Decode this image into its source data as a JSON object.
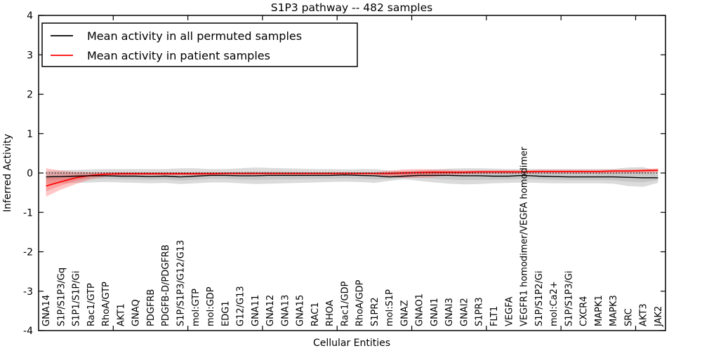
{
  "chart_data": {
    "type": "line",
    "title": "S1P3 pathway -- 482 samples",
    "xlabel": "Cellular Entities",
    "ylabel": "Inferred Activity",
    "ylim": [
      -4,
      4
    ],
    "y_ticks": [
      4,
      3,
      2,
      1,
      0,
      -1,
      -2,
      -3,
      -4
    ],
    "grid": false,
    "zero_line": {
      "value": 0,
      "style": "dotted",
      "color": "#000000"
    },
    "legend": {
      "position": "upper left",
      "entries": [
        {
          "label": "Mean activity in all permuted samples",
          "color": "#000000"
        },
        {
          "label": "Mean activity in patient samples",
          "color": "#ff0000"
        }
      ]
    },
    "categories": [
      "GNA14",
      "S1P/S1P3/Gq",
      "S1P1/S1P/Gi",
      "Rac1/GTP",
      "RhoA/GTP",
      "AKT1",
      "GNAQ",
      "PDGFRB",
      "PDGFB-D/PDGFRB",
      "S1P/S1P3/G12/G13",
      "mol:GTP",
      "mol:GDP",
      "EDG1",
      "G12/G13",
      "GNA11",
      "GNA12",
      "GNA13",
      "GNA15",
      "RAC1",
      "RHOA",
      "Rac1/GDP",
      "RhoA/GDP",
      "S1PR2",
      "mol:S1P",
      "GNAZ",
      "GNAO1",
      "GNAI1",
      "GNAI3",
      "GNAI2",
      "S1PR3",
      "FLT1",
      "VEGFA",
      "VEGFR1 homodimer/VEGFA homodimer",
      "S1P/S1P2/Gi",
      "mol:Ca2+",
      "S1P/S1P3/Gi",
      "CXCR4",
      "MAPK1",
      "MAPK3",
      "SRC",
      "AKT3",
      "JAK2"
    ],
    "series": [
      {
        "name": "Mean activity in all permuted samples",
        "color": "#000000",
        "band_color": "#b0b0b0",
        "values": [
          -0.1,
          -0.09,
          -0.08,
          -0.07,
          -0.07,
          -0.08,
          -0.08,
          -0.09,
          -0.08,
          -0.1,
          -0.08,
          -0.06,
          -0.06,
          -0.07,
          -0.07,
          -0.06,
          -0.06,
          -0.06,
          -0.06,
          -0.06,
          -0.05,
          -0.06,
          -0.07,
          -0.1,
          -0.08,
          -0.06,
          -0.06,
          -0.06,
          -0.07,
          -0.07,
          -0.08,
          -0.08,
          -0.06,
          -0.08,
          -0.09,
          -0.1,
          -0.1,
          -0.1,
          -0.1,
          -0.11,
          -0.12,
          -0.12
        ],
        "band_upper": [
          0.05,
          0.07,
          0.08,
          0.09,
          0.1,
          0.1,
          0.1,
          0.1,
          0.1,
          0.12,
          0.12,
          0.1,
          0.1,
          0.12,
          0.14,
          0.13,
          0.12,
          0.11,
          0.1,
          0.1,
          0.09,
          0.1,
          0.1,
          0.06,
          0.05,
          0.07,
          0.09,
          0.11,
          0.12,
          0.12,
          0.11,
          0.1,
          0.1,
          0.1,
          0.1,
          0.1,
          0.1,
          0.1,
          0.1,
          0.14,
          0.15,
          0.05
        ],
        "band_lower": [
          -0.28,
          -0.26,
          -0.25,
          -0.24,
          -0.23,
          -0.24,
          -0.25,
          -0.26,
          -0.25,
          -0.28,
          -0.26,
          -0.24,
          -0.24,
          -0.26,
          -0.28,
          -0.27,
          -0.26,
          -0.25,
          -0.24,
          -0.23,
          -0.22,
          -0.23,
          -0.25,
          -0.2,
          -0.16,
          -0.2,
          -0.24,
          -0.27,
          -0.29,
          -0.28,
          -0.26,
          -0.25,
          -0.24,
          -0.25,
          -0.26,
          -0.26,
          -0.26,
          -0.26,
          -0.27,
          -0.33,
          -0.35,
          -0.25
        ]
      },
      {
        "name": "Mean activity in patient samples",
        "color": "#ff0000",
        "band_color": "#ff5555",
        "values": [
          -0.33,
          -0.22,
          -0.12,
          -0.06,
          -0.03,
          -0.02,
          -0.02,
          -0.02,
          -0.02,
          -0.02,
          -0.02,
          -0.02,
          -0.01,
          -0.01,
          -0.01,
          -0.01,
          -0.01,
          -0.01,
          -0.01,
          -0.01,
          -0.01,
          -0.01,
          -0.01,
          -0.01,
          0.0,
          0.01,
          0.02,
          0.02,
          0.02,
          0.03,
          0.03,
          0.03,
          0.03,
          0.04,
          0.04,
          0.04,
          0.04,
          0.04,
          0.05,
          0.05,
          0.06,
          0.07
        ],
        "band_upper": [
          0.12,
          0.06,
          0.03,
          0.02,
          0.02,
          0.02,
          0.02,
          0.02,
          0.02,
          0.02,
          0.02,
          0.02,
          0.02,
          0.02,
          0.02,
          0.02,
          0.02,
          0.02,
          0.02,
          0.02,
          0.02,
          0.02,
          0.02,
          0.06,
          0.09,
          0.1,
          0.09,
          0.08,
          0.07,
          0.07,
          0.07,
          0.07,
          0.07,
          0.08,
          0.08,
          0.08,
          0.08,
          0.08,
          0.09,
          0.09,
          0.1,
          0.12
        ],
        "band_lower": [
          -0.6,
          -0.42,
          -0.28,
          -0.16,
          -0.09,
          -0.07,
          -0.06,
          -0.06,
          -0.06,
          -0.06,
          -0.06,
          -0.06,
          -0.05,
          -0.05,
          -0.05,
          -0.05,
          -0.05,
          -0.05,
          -0.05,
          -0.05,
          -0.05,
          -0.05,
          -0.05,
          -0.1,
          -0.13,
          -0.12,
          -0.1,
          -0.06,
          -0.04,
          -0.03,
          -0.02,
          -0.02,
          -0.02,
          -0.01,
          -0.01,
          -0.01,
          -0.01,
          -0.01,
          -0.01,
          0.0,
          0.0,
          0.01
        ]
      }
    ]
  }
}
